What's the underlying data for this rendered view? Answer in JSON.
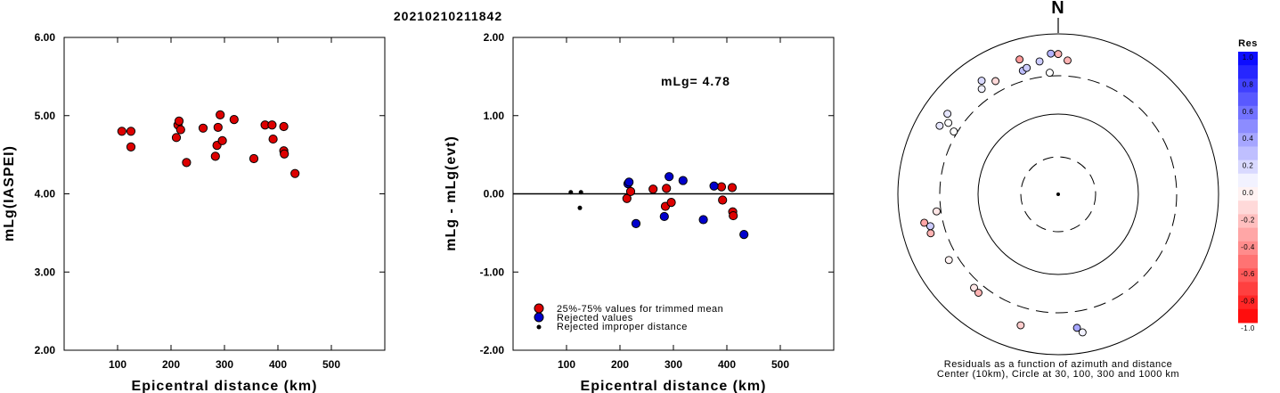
{
  "page_title": "20210210211842",
  "chart_data": [
    {
      "type": "scatter",
      "xlabel": "Epicentral distance (km)",
      "ylabel": "mLg(IASPEI)",
      "xlim": [
        0,
        600
      ],
      "ylim": [
        2.0,
        6.0
      ],
      "xticks": [
        "100",
        "200",
        "300",
        "400",
        "500"
      ],
      "yticks": [
        "2.00",
        "3.00",
        "4.00",
        "5.00",
        "6.00"
      ],
      "points": [
        {
          "x": 108,
          "y": 4.8
        },
        {
          "x": 125,
          "y": 4.8
        },
        {
          "x": 125,
          "y": 4.6
        },
        {
          "x": 213,
          "y": 4.88
        },
        {
          "x": 215,
          "y": 4.93
        },
        {
          "x": 218,
          "y": 4.82
        },
        {
          "x": 210,
          "y": 4.72
        },
        {
          "x": 229,
          "y": 4.4
        },
        {
          "x": 260,
          "y": 4.84
        },
        {
          "x": 283,
          "y": 4.48
        },
        {
          "x": 286,
          "y": 4.62
        },
        {
          "x": 288,
          "y": 4.85
        },
        {
          "x": 292,
          "y": 5.01
        },
        {
          "x": 296,
          "y": 4.68
        },
        {
          "x": 318,
          "y": 4.95
        },
        {
          "x": 355,
          "y": 4.45
        },
        {
          "x": 376,
          "y": 4.88
        },
        {
          "x": 389,
          "y": 4.88
        },
        {
          "x": 391,
          "y": 4.7
        },
        {
          "x": 411,
          "y": 4.86
        },
        {
          "x": 411,
          "y": 4.55
        },
        {
          "x": 412,
          "y": 4.51
        },
        {
          "x": 432,
          "y": 4.26
        }
      ]
    },
    {
      "type": "scatter",
      "xlabel": "Epicentral distance (km)",
      "ylabel": "mLg - mLg(evt)",
      "xlim": [
        0,
        600
      ],
      "ylim": [
        -2.0,
        2.0
      ],
      "xticks": [
        "100",
        "200",
        "300",
        "400",
        "500"
      ],
      "yticks": [
        "-2.00",
        "-1.00",
        "0.00",
        "1.00",
        "2.00"
      ],
      "annotation": "mLg= 4.78",
      "legend": {
        "placement": "bottom-left",
        "entries": [
          {
            "label": "25%-75% values for trimmed mean",
            "color": "#dd0000"
          },
          {
            "label": "Rejected values",
            "color": "#0000cc"
          },
          {
            "label": "Rejected improper distance",
            "color": "#000000"
          }
        ]
      },
      "series": [
        {
          "category": "trimmed",
          "color": "#dd0000",
          "points": [
            {
              "x": 213,
              "y": -0.06
            },
            {
              "x": 220,
              "y": 0.03
            },
            {
              "x": 262,
              "y": 0.06
            },
            {
              "x": 287,
              "y": 0.07
            },
            {
              "x": 285,
              "y": -0.16
            },
            {
              "x": 296,
              "y": -0.11
            },
            {
              "x": 390,
              "y": 0.09
            },
            {
              "x": 392,
              "y": -0.08
            },
            {
              "x": 410,
              "y": 0.08
            },
            {
              "x": 411,
              "y": -0.23
            },
            {
              "x": 412,
              "y": -0.28
            }
          ]
        },
        {
          "category": "rejected",
          "color": "#0000cc",
          "points": [
            {
              "x": 215,
              "y": 0.13
            },
            {
              "x": 217,
              "y": 0.15
            },
            {
              "x": 230,
              "y": -0.38
            },
            {
              "x": 283,
              "y": -0.29
            },
            {
              "x": 292,
              "y": 0.22
            },
            {
              "x": 318,
              "y": 0.17
            },
            {
              "x": 356,
              "y": -0.33
            },
            {
              "x": 376,
              "y": 0.1
            },
            {
              "x": 432,
              "y": -0.52
            }
          ]
        },
        {
          "category": "improper",
          "color": "#000000",
          "points": [
            {
              "x": 108,
              "y": 0.02
            },
            {
              "x": 127,
              "y": 0.02
            },
            {
              "x": 125,
              "y": -0.18
            }
          ]
        }
      ]
    },
    {
      "type": "scatter",
      "subtype": "polar-azimuth-distance",
      "north_label": "N",
      "caption_line1": "Residuals as a function of azimuth and distance",
      "caption_line2": "Center (10km), Circle at 30, 100, 300 and 1000 km",
      "colorbar_title": "Res",
      "colorbar_ticks": [
        "1.0",
        "0.8",
        "0.6",
        "0.4",
        "0.2",
        "0.0",
        "-0.2",
        "-0.4",
        "-0.6",
        "-0.8",
        "-1.0"
      ],
      "stations": [
        {
          "az": -16,
          "dist": 560,
          "res": -0.4
        },
        {
          "az": -8,
          "dist": 470,
          "res": 0.2
        },
        {
          "az": -3,
          "dist": 570,
          "res": 0.3
        },
        {
          "az": 0,
          "dist": 560,
          "res": -0.3
        },
        {
          "az": 4,
          "dist": 470,
          "res": -0.3
        },
        {
          "az": -16,
          "dist": 400,
          "res": 0.25
        },
        {
          "az": -14,
          "dist": 420,
          "res": 0.2
        },
        {
          "az": -4,
          "dist": 330,
          "res": 0.0
        },
        {
          "az": -29,
          "dist": 410,
          "res": -0.15
        },
        {
          "az": -34,
          "dist": 510,
          "res": 0.15
        },
        {
          "az": -36,
          "dist": 420,
          "res": 0.05
        },
        {
          "az": -54,
          "dist": 510,
          "res": 0.1
        },
        {
          "az": -57,
          "dist": 430,
          "res": 0.0
        },
        {
          "az": -60,
          "dist": 510,
          "res": 0.1
        },
        {
          "az": -59,
          "dist": 330,
          "res": 0.0
        },
        {
          "az": -102,
          "dist": 510,
          "res": -0.35
        },
        {
          "az": -104,
          "dist": 440,
          "res": 0.2
        },
        {
          "az": -98,
          "dist": 340,
          "res": -0.1
        },
        {
          "az": -107,
          "dist": 460,
          "res": -0.3
        },
        {
          "az": -121,
          "dist": 390,
          "res": -0.05
        },
        {
          "az": -138,
          "dist": 370,
          "res": -0.1
        },
        {
          "az": -141,
          "dist": 380,
          "res": -0.3
        },
        {
          "az": -164,
          "dist": 500,
          "res": -0.2
        },
        {
          "az": 172,
          "dist": 480,
          "res": 0.35
        },
        {
          "az": 170,
          "dist": 560,
          "res": 0.05
        }
      ]
    }
  ]
}
